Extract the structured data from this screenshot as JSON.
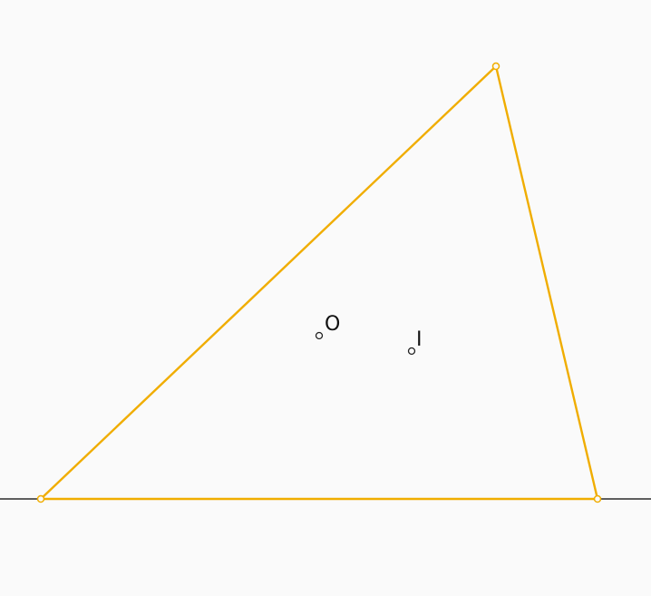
{
  "colors": {
    "background": "#fafafa",
    "triangle": "#f0ad00",
    "baseline": "#000000",
    "points": "#222222"
  },
  "labels": {
    "circumcenter": "O",
    "incenter": "I"
  }
}
